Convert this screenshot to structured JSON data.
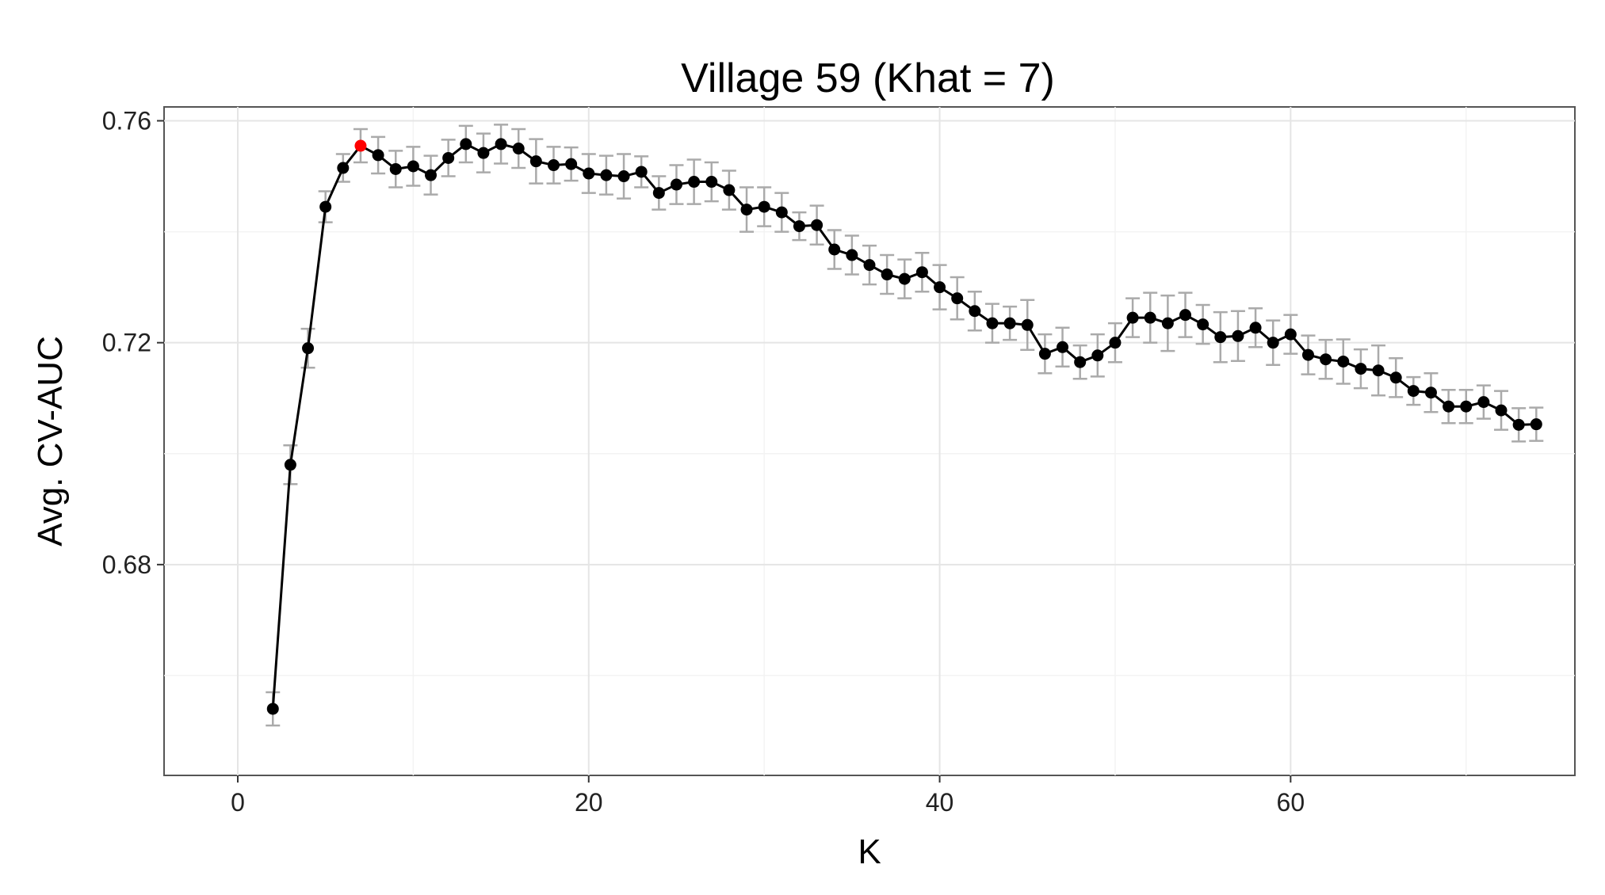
{
  "chart_data": {
    "type": "line",
    "title": "Village 59 (Khat = 7)",
    "xlabel": "K",
    "ylabel": "Avg. CV-AUC",
    "xlim": [
      -4.2,
      76.2
    ],
    "ylim": [
      0.642,
      0.7625
    ],
    "x_ticks": [
      0,
      20,
      40,
      60
    ],
    "x_tick_labels": [
      "0",
      "20",
      "40",
      "60"
    ],
    "y_ticks": [
      0.68,
      0.72,
      0.76
    ],
    "y_tick_labels": [
      "0.68",
      "0.72",
      "0.76"
    ],
    "grid": true,
    "legend": "none",
    "highlight": {
      "x": 7,
      "y": 0.7555,
      "color": "#ff0000"
    },
    "colors": {
      "line": "#000000",
      "points": "#000000",
      "error_bars": "#aaaaaa",
      "highlight": "#ff0000"
    },
    "series": [
      {
        "x": [
          2,
          3,
          4,
          5,
          6,
          7,
          8,
          9,
          10,
          11,
          12,
          13,
          14,
          15,
          16,
          17,
          18,
          19,
          20,
          21,
          22,
          23,
          24,
          25,
          26,
          27,
          28,
          29,
          30,
          31,
          32,
          33,
          34,
          35,
          36,
          37,
          38,
          39,
          40,
          41,
          42,
          43,
          44,
          45,
          46,
          47,
          48,
          49,
          50,
          51,
          52,
          53,
          54,
          55,
          56,
          57,
          58,
          59,
          60,
          61,
          62,
          63,
          64,
          65,
          66,
          67,
          68,
          69,
          70,
          71,
          72,
          73,
          74
        ],
        "y": [
          0.654,
          0.698,
          0.719,
          0.7445,
          0.7515,
          0.7555,
          0.7538,
          0.7513,
          0.7518,
          0.7502,
          0.7533,
          0.7558,
          0.7542,
          0.7558,
          0.755,
          0.7527,
          0.752,
          0.7522,
          0.7505,
          0.7502,
          0.75,
          0.7508,
          0.747,
          0.7485,
          0.749,
          0.749,
          0.7475,
          0.744,
          0.7445,
          0.7435,
          0.741,
          0.7412,
          0.7368,
          0.7358,
          0.734,
          0.7323,
          0.7315,
          0.7327,
          0.73,
          0.728,
          0.7257,
          0.7235,
          0.7235,
          0.7232,
          0.718,
          0.7192,
          0.7165,
          0.7177,
          0.72,
          0.7245,
          0.7245,
          0.7235,
          0.725,
          0.7233,
          0.721,
          0.7212,
          0.7227,
          0.72,
          0.7215,
          0.7178,
          0.717,
          0.7166,
          0.7153,
          0.715,
          0.7137,
          0.7113,
          0.711,
          0.7085,
          0.7085,
          0.7093,
          0.7078,
          0.7052,
          0.7053
        ],
        "err": [
          0.003,
          0.0035,
          0.0035,
          0.0028,
          0.0025,
          0.003,
          0.0033,
          0.0033,
          0.0035,
          0.0035,
          0.0033,
          0.0033,
          0.0035,
          0.0035,
          0.0035,
          0.004,
          0.0033,
          0.003,
          0.0035,
          0.0035,
          0.004,
          0.0028,
          0.003,
          0.0035,
          0.004,
          0.0035,
          0.0035,
          0.004,
          0.0035,
          0.0035,
          0.0025,
          0.0035,
          0.0035,
          0.0035,
          0.0035,
          0.0035,
          0.0035,
          0.0035,
          0.004,
          0.0038,
          0.0035,
          0.0035,
          0.003,
          0.0045,
          0.0035,
          0.0035,
          0.003,
          0.0038,
          0.0035,
          0.0035,
          0.0045,
          0.005,
          0.004,
          0.0035,
          0.0045,
          0.0045,
          0.0035,
          0.004,
          0.0035,
          0.0035,
          0.0035,
          0.004,
          0.0035,
          0.0045,
          0.0035,
          0.0025,
          0.0035,
          0.003,
          0.003,
          0.003,
          0.0035,
          0.003,
          0.003
        ]
      }
    ]
  }
}
